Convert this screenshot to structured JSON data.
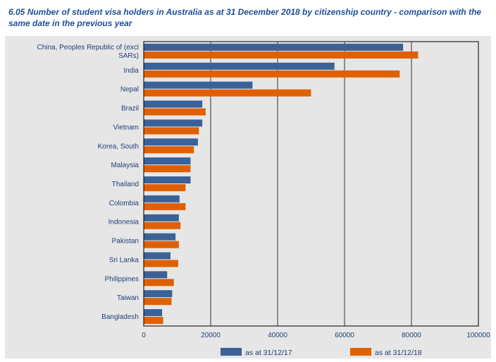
{
  "chart_data": {
    "type": "bar",
    "orientation": "horizontal",
    "title": "6.05 Number of student visa holders in Australia as at 31 December 2018 by citizenship country - comparison with the same date in the previous year",
    "categories": [
      "China, Peoples Republic of (excl SARs)",
      "India",
      "Nepal",
      "Brazil",
      "Vietnam",
      "Korea, South",
      "Malaysia",
      "Thailand",
      "Colombia",
      "Indonesia",
      "Pakistan",
      "Sri Lanka",
      "Philippines",
      "Taiwan",
      "Bangladesh"
    ],
    "series": [
      {
        "name": "as at 31/12/17",
        "color": "#3a6299",
        "values": [
          77500,
          57000,
          32500,
          17500,
          17500,
          16200,
          14000,
          14000,
          10700,
          10500,
          9500,
          8000,
          7000,
          8500,
          5500
        ]
      },
      {
        "name": "as at 31/12/18",
        "color": "#e06000",
        "values": [
          82000,
          76500,
          50000,
          18500,
          16500,
          15000,
          14000,
          12500,
          12500,
          11000,
          10500,
          10300,
          9000,
          8300,
          5800
        ]
      }
    ],
    "xlim": [
      0,
      100000
    ],
    "xticks": [
      0,
      20000,
      40000,
      60000,
      80000,
      100000
    ],
    "grid": true,
    "legend_position": "bottom",
    "plot_background": "#e6e6e6",
    "gridline_color": "#333333"
  }
}
